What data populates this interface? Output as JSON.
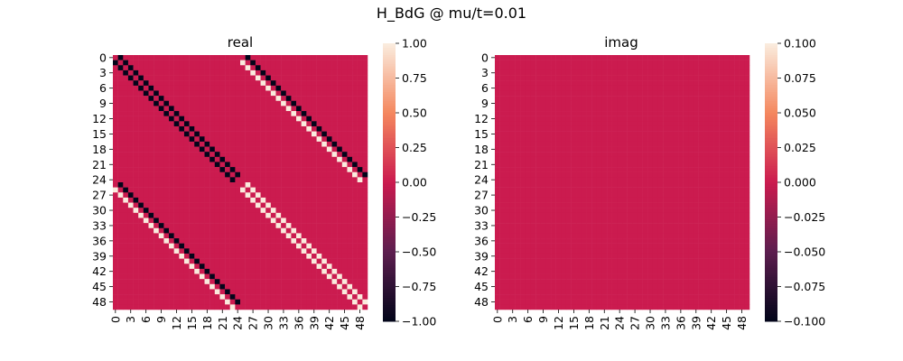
{
  "chart_data": {
    "title": "H_BdG @ mu/t=0.01",
    "type": "heatmap",
    "n": 50,
    "tick_step": 3,
    "tick_labels": [
      "0",
      "3",
      "6",
      "9",
      "12",
      "15",
      "18",
      "21",
      "24",
      "27",
      "30",
      "33",
      "36",
      "39",
      "42",
      "45",
      "48"
    ],
    "palette": {
      "neg_one": "#03051a",
      "mid": "#cb1b4f",
      "pos_one": "#faebdd",
      "mid_dark": "#5d1e4f",
      "mid_light": "#f4875e"
    },
    "panels": [
      {
        "title": "real",
        "matrix": "H_BdG real part: block [[-h, D], [D, h]] with h = chain hopping (-1 on nearest-neighbour diagonals) and D = +1 on nearest-neighbour diagonals; diagonal ~ ±0.01; all other entries 0",
        "n_blocks": 25,
        "block_offdiag_value": 1,
        "hopping_value": -1,
        "vmin": -1.0,
        "vmax": 1.0,
        "colorbar_ticks": [
          "1.00",
          "0.75",
          "0.50",
          "0.25",
          "0.00",
          "−0.25",
          "−0.50",
          "−0.75",
          "−1.00"
        ],
        "colorbar_values": [
          1.0,
          0.75,
          0.5,
          0.25,
          0.0,
          -0.25,
          -0.5,
          -0.75,
          -1.0
        ]
      },
      {
        "title": "imag",
        "matrix": "all zeros",
        "vmin": -0.1,
        "vmax": 0.1,
        "colorbar_ticks": [
          "0.100",
          "0.075",
          "0.050",
          "0.025",
          "0.000",
          "−0.025",
          "−0.050",
          "−0.075",
          "−0.100"
        ],
        "colorbar_values": [
          0.1,
          0.075,
          0.05,
          0.025,
          0.0,
          -0.025,
          -0.05,
          -0.075,
          -0.1
        ]
      }
    ]
  }
}
